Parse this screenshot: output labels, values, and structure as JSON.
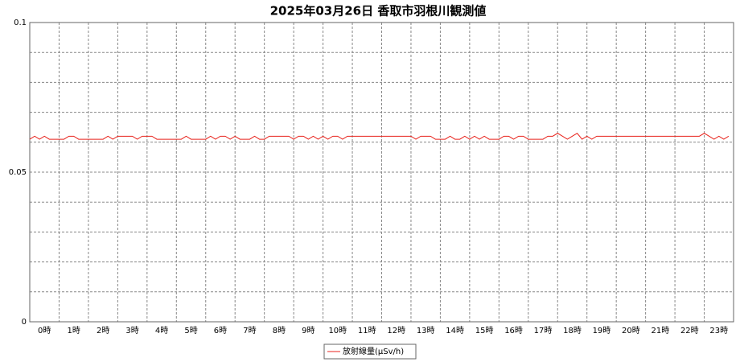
{
  "chart_data": {
    "type": "line",
    "title": "2025年03月26日 香取市羽根川観測値",
    "x": [
      0,
      10,
      20,
      30,
      40,
      50,
      60,
      70,
      80,
      90,
      100,
      110,
      120,
      130,
      140,
      150,
      160,
      170,
      180,
      190,
      200,
      210,
      220,
      230,
      240,
      250,
      260,
      270,
      280,
      290,
      300,
      310,
      320,
      330,
      340,
      350,
      360,
      370,
      380,
      390,
      400,
      410,
      420,
      430,
      440,
      450,
      460,
      470,
      480,
      490,
      500,
      510,
      520,
      530,
      540,
      550,
      560,
      570,
      580,
      590,
      600,
      610,
      620,
      630,
      640,
      650,
      660,
      670,
      680,
      690,
      700,
      710,
      720,
      730,
      740,
      750,
      760,
      770,
      780,
      790,
      800,
      810,
      820,
      830,
      840,
      850,
      860,
      870,
      880,
      890,
      900,
      910,
      920,
      930,
      940,
      950,
      960,
      970,
      980,
      990,
      1000,
      1010,
      1020,
      1030,
      1040,
      1050,
      1060,
      1070,
      1080,
      1090,
      1100,
      1110,
      1120,
      1130,
      1140,
      1150,
      1160,
      1170,
      1180,
      1190,
      1200,
      1210,
      1220,
      1230,
      1240,
      1250,
      1260,
      1270,
      1280,
      1290,
      1300,
      1310,
      1320,
      1330,
      1340,
      1350,
      1360,
      1370,
      1380,
      1390,
      1400,
      1410,
      1420,
      1430
    ],
    "series": [
      {
        "name": "放射線量(μSv/h)",
        "color": "#e8231c",
        "values": [
          0.061,
          0.062,
          0.061,
          0.062,
          0.061,
          0.061,
          0.061,
          0.061,
          0.062,
          0.062,
          0.061,
          0.061,
          0.061,
          0.061,
          0.061,
          0.061,
          0.062,
          0.061,
          0.062,
          0.062,
          0.062,
          0.062,
          0.061,
          0.062,
          0.062,
          0.062,
          0.061,
          0.061,
          0.061,
          0.061,
          0.061,
          0.061,
          0.062,
          0.061,
          0.061,
          0.061,
          0.061,
          0.062,
          0.061,
          0.062,
          0.062,
          0.061,
          0.062,
          0.061,
          0.061,
          0.061,
          0.062,
          0.061,
          0.061,
          0.062,
          0.062,
          0.062,
          0.062,
          0.062,
          0.061,
          0.062,
          0.062,
          0.061,
          0.062,
          0.061,
          0.062,
          0.061,
          0.062,
          0.062,
          0.061,
          0.062,
          0.062,
          0.062,
          0.062,
          0.062,
          0.062,
          0.062,
          0.062,
          0.062,
          0.062,
          0.062,
          0.062,
          0.062,
          0.062,
          0.061,
          0.062,
          0.062,
          0.062,
          0.061,
          0.061,
          0.061,
          0.062,
          0.061,
          0.061,
          0.062,
          0.061,
          0.062,
          0.061,
          0.062,
          0.061,
          0.061,
          0.061,
          0.062,
          0.062,
          0.061,
          0.062,
          0.062,
          0.061,
          0.061,
          0.061,
          0.061,
          0.062,
          0.062,
          0.063,
          0.062,
          0.061,
          0.062,
          0.063,
          0.061,
          0.062,
          0.061,
          0.062,
          0.062,
          0.062,
          0.062,
          0.062,
          0.062,
          0.062,
          0.062,
          0.062,
          0.062,
          0.062,
          0.062,
          0.062,
          0.062,
          0.062,
          0.062,
          0.062,
          0.062,
          0.062,
          0.062,
          0.062,
          0.062,
          0.063,
          0.062,
          0.061,
          0.062,
          0.061,
          0.062
        ]
      }
    ],
    "xlim": [
      0,
      1440
    ],
    "xticks": [
      {
        "value": 0,
        "label": "0時"
      },
      {
        "value": 60,
        "label": "1時"
      },
      {
        "value": 120,
        "label": "2時"
      },
      {
        "value": 180,
        "label": "3時"
      },
      {
        "value": 240,
        "label": "4時"
      },
      {
        "value": 300,
        "label": "5時"
      },
      {
        "value": 360,
        "label": "6時"
      },
      {
        "value": 420,
        "label": "7時"
      },
      {
        "value": 480,
        "label": "8時"
      },
      {
        "value": 540,
        "label": "9時"
      },
      {
        "value": 600,
        "label": "10時"
      },
      {
        "value": 660,
        "label": "11時"
      },
      {
        "value": 720,
        "label": "12時"
      },
      {
        "value": 780,
        "label": "13時"
      },
      {
        "value": 840,
        "label": "14時"
      },
      {
        "value": 900,
        "label": "15時"
      },
      {
        "value": 960,
        "label": "16時"
      },
      {
        "value": 1020,
        "label": "17時"
      },
      {
        "value": 1080,
        "label": "18時"
      },
      {
        "value": 1140,
        "label": "19時"
      },
      {
        "value": 1200,
        "label": "20時"
      },
      {
        "value": 1260,
        "label": "21時"
      },
      {
        "value": 1320,
        "label": "22時"
      },
      {
        "value": 1380,
        "label": "23時"
      }
    ],
    "ylim": [
      0,
      0.1
    ],
    "yticks": [
      0,
      0.05,
      0.1
    ],
    "yminorticks": [
      0.01,
      0.02,
      0.03,
      0.04,
      0.06,
      0.07,
      0.08,
      0.09
    ],
    "grid": true,
    "legend": "bottom"
  }
}
